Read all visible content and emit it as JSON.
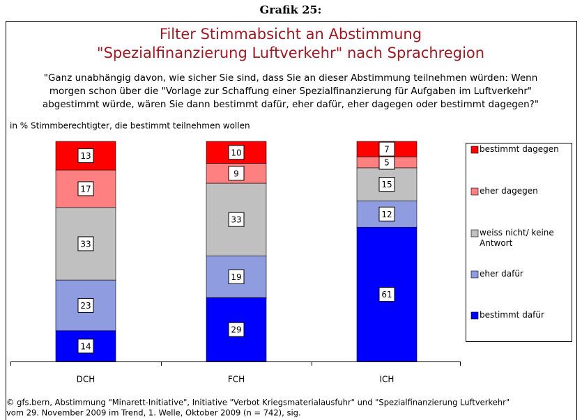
{
  "chart_data": {
    "type": "stacked_bar",
    "header": "Grafik 25:",
    "title": [
      "Filter Stimmabsicht an Abstimmung",
      "\"Spezialfinanzierung Luftverkehr\" nach Sprachregion"
    ],
    "subtitle": [
      "\"Ganz unabhängig davon, wie sicher Sie sind, dass Sie an dieser Abstimmung teilnehmen würden: Wenn",
      "morgen schon über die \"Vorlage zur Schaffung einer Spezialfinanzierung für Aufgaben im Luftverkehr\"",
      "abgestimmt würde, wären Sie dann bestimmt dafür, eher dafür, eher dagegen oder bestimmt dagegen?\""
    ],
    "y_label": "in % Stimmberechtigter, die bestimmt teilnehmen wollen",
    "categories": [
      "DCH",
      "FCH",
      "ICH"
    ],
    "series": [
      {
        "name": "bestimmt dafür",
        "color": "#0000ff",
        "values": [
          14,
          29,
          61
        ]
      },
      {
        "name": "eher dafür",
        "color": "#8f9de0",
        "values": [
          23,
          19,
          12
        ]
      },
      {
        "name": "weiss nicht/ keine Antwort",
        "color": "#c0c0c0",
        "values": [
          33,
          33,
          15
        ]
      },
      {
        "name": "eher dagegen",
        "color": "#ff8080",
        "values": [
          17,
          9,
          5
        ]
      },
      {
        "name": "bestimmt dagegen",
        "color": "#ff0000",
        "values": [
          13,
          10,
          7
        ]
      }
    ],
    "legend": "right",
    "footer": [
      "© gfs.bern, Abstimmung \"Minarett-Initiative\", Initiative \"Verbot Kriegsmaterialausfuhr\" und \"Spezialfinanzierung Luftverkehr\"",
      "vom 29. November 2009 im Trend, 1. Welle, Oktober 2009 (n = 742), sig."
    ]
  }
}
